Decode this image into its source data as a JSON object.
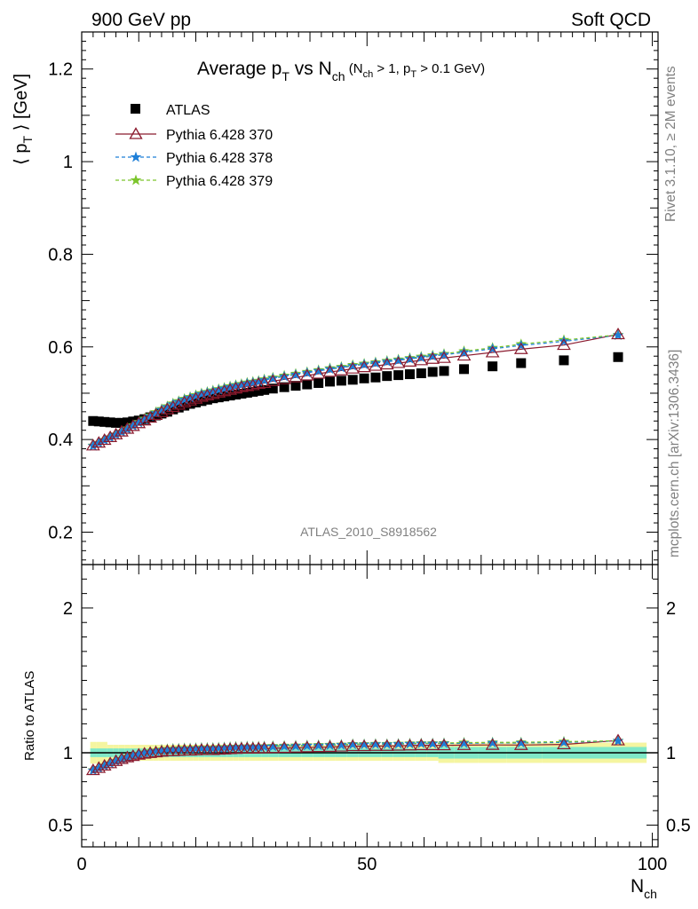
{
  "header": {
    "left": "900 GeV pp",
    "right": "Soft QCD"
  },
  "side_labels": {
    "upper": "Rivet 3.1.10, ≥ 2M events",
    "lower": "mcplots.cern.ch [arXiv:1306.3436]"
  },
  "analysis_id": "ATLAS_2010_S8918562",
  "colors": {
    "atlas": "#000000",
    "p370": "#8b1a2e",
    "p378": "#1e7fd8",
    "p379": "#7cc52c",
    "band_inner": "#7fe8c8",
    "band_outer": "#f5f5a0"
  },
  "chart_data": [
    {
      "type": "scatter",
      "title": {
        "main": "Average p",
        "sub1": "T",
        "mid": " vs N",
        "sub2": "ch",
        "cond": " (N",
        "cond_sub1": "ch",
        "cond_mid": " > 1, p",
        "cond_sub2": "T",
        "cond_end": " > 0.1 GeV)"
      },
      "ylabel": {
        "pre": "⟨ p",
        "sub": "T",
        "post": " ⟩  [GeV]"
      },
      "ylim": [
        0.13,
        1.28
      ],
      "xlim": [
        0,
        101
      ],
      "yticks": [
        "0.2",
        "0.4",
        "0.6",
        "0.8",
        "1",
        "1.2"
      ],
      "legend_position": "top-left",
      "legend": [
        "ATLAS",
        "Pythia 6.428 370",
        "Pythia 6.428 378",
        "Pythia 6.428 379"
      ],
      "x": [
        2,
        3,
        4,
        5,
        6,
        7,
        8,
        9,
        10,
        11,
        12,
        13,
        14,
        15,
        16,
        17,
        18,
        19,
        20,
        21,
        22,
        23,
        24,
        25,
        26,
        27,
        28,
        29,
        30,
        31,
        32,
        33.5,
        35.5,
        37.5,
        39.5,
        41.5,
        43.5,
        45.5,
        47.5,
        49.5,
        51.5,
        53.5,
        55.5,
        57.5,
        59.5,
        61.5,
        63.5,
        67,
        72,
        77,
        84.5,
        94
      ],
      "series": [
        {
          "name": "ATLAS",
          "values": [
            0.44,
            0.439,
            0.438,
            0.437,
            0.436,
            0.436,
            0.437,
            0.439,
            0.441,
            0.444,
            0.448,
            0.452,
            0.456,
            0.46,
            0.465,
            0.469,
            0.473,
            0.477,
            0.48,
            0.483,
            0.486,
            0.489,
            0.491,
            0.493,
            0.495,
            0.497,
            0.499,
            0.501,
            0.503,
            0.505,
            0.507,
            0.51,
            0.513,
            0.516,
            0.519,
            0.522,
            0.525,
            0.527,
            0.529,
            0.532,
            0.534,
            0.537,
            0.539,
            0.541,
            0.543,
            0.546,
            0.548,
            0.552,
            0.558,
            0.565,
            0.571,
            0.578
          ]
        },
        {
          "name": "Pythia 6.428 370",
          "values": [
            0.387,
            0.393,
            0.399,
            0.405,
            0.411,
            0.417,
            0.423,
            0.429,
            0.435,
            0.441,
            0.447,
            0.453,
            0.459,
            0.465,
            0.47,
            0.475,
            0.48,
            0.484,
            0.488,
            0.492,
            0.495,
            0.498,
            0.501,
            0.504,
            0.507,
            0.51,
            0.513,
            0.515,
            0.517,
            0.52,
            0.522,
            0.526,
            0.53,
            0.534,
            0.538,
            0.542,
            0.546,
            0.549,
            0.553,
            0.556,
            0.559,
            0.562,
            0.565,
            0.568,
            0.571,
            0.574,
            0.576,
            0.581,
            0.588,
            0.595,
            0.604,
            0.627
          ]
        },
        {
          "name": "Pythia 6.428 378",
          "values": [
            0.386,
            0.392,
            0.398,
            0.404,
            0.41,
            0.416,
            0.422,
            0.429,
            0.436,
            0.443,
            0.45,
            0.457,
            0.464,
            0.47,
            0.476,
            0.481,
            0.486,
            0.49,
            0.494,
            0.498,
            0.501,
            0.504,
            0.507,
            0.51,
            0.513,
            0.516,
            0.518,
            0.521,
            0.523,
            0.525,
            0.528,
            0.532,
            0.536,
            0.54,
            0.544,
            0.548,
            0.552,
            0.555,
            0.559,
            0.562,
            0.565,
            0.568,
            0.571,
            0.574,
            0.577,
            0.58,
            0.583,
            0.588,
            0.596,
            0.603,
            0.612,
            0.625
          ]
        },
        {
          "name": "Pythia 6.428 379",
          "values": [
            0.387,
            0.393,
            0.399,
            0.405,
            0.411,
            0.417,
            0.424,
            0.431,
            0.438,
            0.445,
            0.452,
            0.459,
            0.466,
            0.472,
            0.478,
            0.483,
            0.488,
            0.492,
            0.496,
            0.5,
            0.503,
            0.506,
            0.509,
            0.512,
            0.515,
            0.518,
            0.52,
            0.523,
            0.525,
            0.527,
            0.53,
            0.534,
            0.538,
            0.542,
            0.546,
            0.55,
            0.554,
            0.557,
            0.561,
            0.564,
            0.567,
            0.57,
            0.573,
            0.576,
            0.579,
            0.582,
            0.585,
            0.591,
            0.598,
            0.606,
            0.615,
            0.626
          ]
        }
      ]
    },
    {
      "type": "scatter",
      "ylabel": "Ratio to ATLAS",
      "ylim": [
        0.35,
        2.3
      ],
      "yticks": [
        "0.5",
        "1",
        "2"
      ],
      "xlabel": {
        "main": "N",
        "sub": "ch"
      },
      "xticks": [
        "0",
        "50",
        "100"
      ],
      "band": {
        "inner": 0.03,
        "outer": 0.055
      }
    }
  ]
}
